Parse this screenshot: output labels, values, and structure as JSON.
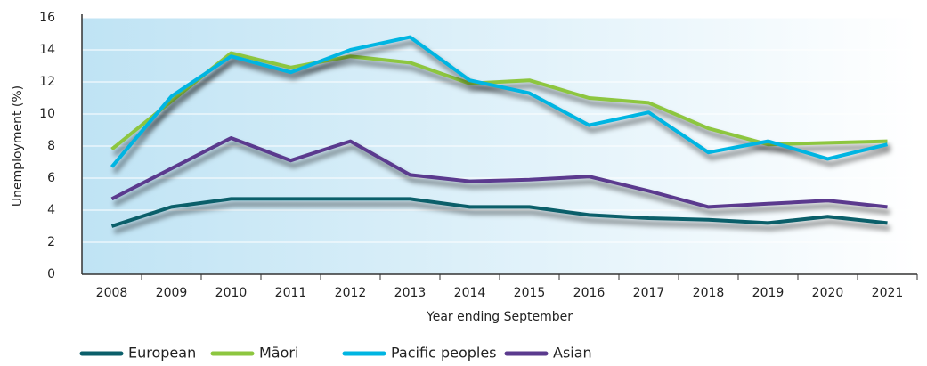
{
  "chart_data": {
    "type": "line",
    "x_label": "Year ending September",
    "y_label": "Unemployment (%)",
    "categories": [
      "2008",
      "2009",
      "2010",
      "2011",
      "2012",
      "2013",
      "2014",
      "2015",
      "2016",
      "2017",
      "2018",
      "2019",
      "2020",
      "2021"
    ],
    "series": [
      {
        "name": "European",
        "color": "#0b5f6a",
        "values": [
          3.0,
          4.2,
          4.7,
          4.7,
          4.7,
          4.7,
          4.2,
          4.2,
          3.7,
          3.5,
          3.4,
          3.2,
          3.6,
          3.2
        ]
      },
      {
        "name": "Māori",
        "color": "#8dc63f",
        "values": [
          7.8,
          10.8,
          13.8,
          12.9,
          13.6,
          13.2,
          11.9,
          12.1,
          11.0,
          10.7,
          9.1,
          8.1,
          8.2,
          8.3
        ]
      },
      {
        "name": "Pacific peoples",
        "color": "#00b5e2",
        "values": [
          6.7,
          11.1,
          13.6,
          12.6,
          14.0,
          14.8,
          12.1,
          11.3,
          9.3,
          10.1,
          7.6,
          8.3,
          7.2,
          8.1
        ]
      },
      {
        "name": "Asian",
        "color": "#5b3a8e",
        "values": [
          4.7,
          6.6,
          8.5,
          7.1,
          8.3,
          6.2,
          5.8,
          5.9,
          6.1,
          5.2,
          4.2,
          4.4,
          4.6,
          4.2
        ]
      }
    ],
    "ylim": [
      0,
      16
    ],
    "yticks": [
      0,
      2,
      4,
      6,
      8,
      10,
      12,
      14,
      16
    ],
    "grid": true,
    "legend": "bottom"
  }
}
